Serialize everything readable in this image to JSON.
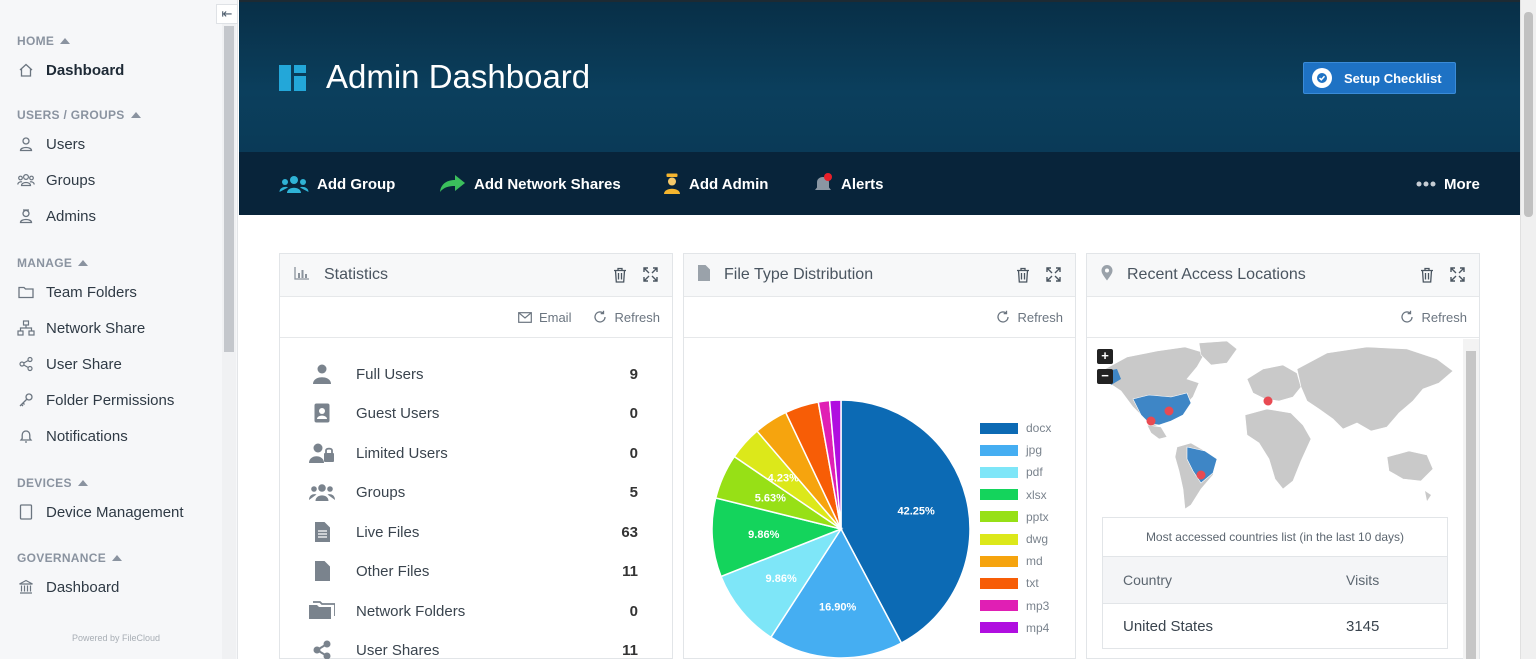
{
  "sidebar": {
    "sections": [
      {
        "title": "HOME",
        "items": [
          {
            "label": "Dashboard",
            "icon": "home-icon",
            "active": true
          }
        ]
      },
      {
        "title": "USERS / GROUPS",
        "items": [
          {
            "label": "Users",
            "icon": "user-icon"
          },
          {
            "label": "Groups",
            "icon": "group-icon"
          },
          {
            "label": "Admins",
            "icon": "admin-icon"
          }
        ]
      },
      {
        "title": "MANAGE",
        "items": [
          {
            "label": "Team Folders",
            "icon": "folder-icon"
          },
          {
            "label": "Network Share",
            "icon": "network-icon"
          },
          {
            "label": "User Share",
            "icon": "share-icon"
          },
          {
            "label": "Folder Permissions",
            "icon": "key-icon"
          },
          {
            "label": "Notifications",
            "icon": "bell-icon"
          }
        ]
      },
      {
        "title": "DEVICES",
        "items": [
          {
            "label": "Device Management",
            "icon": "device-icon"
          }
        ]
      },
      {
        "title": "GOVERNANCE",
        "items": [
          {
            "label": "Dashboard",
            "icon": "bank-icon"
          }
        ]
      }
    ],
    "powered_by": "Powered by FileCloud"
  },
  "header": {
    "title": "Admin Dashboard",
    "setup_button": "Setup Checklist"
  },
  "actions": {
    "add_group": "Add Group",
    "add_network_shares": "Add Network Shares",
    "add_admin": "Add Admin",
    "alerts": "Alerts",
    "more": "More"
  },
  "statistics": {
    "title": "Statistics",
    "email": "Email",
    "refresh": "Refresh",
    "rows": [
      {
        "label": "Full Users",
        "value": "9"
      },
      {
        "label": "Guest Users",
        "value": "0"
      },
      {
        "label": "Limited Users",
        "value": "0"
      },
      {
        "label": "Groups",
        "value": "5"
      },
      {
        "label": "Live Files",
        "value": "63"
      },
      {
        "label": "Other Files",
        "value": "11"
      },
      {
        "label": "Network Folders",
        "value": "0"
      },
      {
        "label": "User Shares",
        "value": "11"
      }
    ]
  },
  "file_types": {
    "title": "File Type Distribution",
    "refresh": "Refresh"
  },
  "chart_data": {
    "type": "pie",
    "categories": [
      "docx",
      "jpg",
      "pdf",
      "xlsx",
      "pptx",
      "dwg",
      "md",
      "txt",
      "mp3",
      "mp4"
    ],
    "values": [
      42.25,
      16.9,
      9.86,
      9.86,
      5.63,
      4.23,
      4.23,
      4.23,
      1.41,
      1.41
    ],
    "labels": [
      "42.25%",
      "16.90%",
      "9.86%",
      "9.86%",
      "5.63%",
      "4.23%",
      "",
      "",
      "",
      ""
    ],
    "colors": [
      "#0c6ab4",
      "#45aef2",
      "#7ee6f8",
      "#14d45c",
      "#97e016",
      "#dce81a",
      "#f6a40e",
      "#f75d06",
      "#e01fb4",
      "#b00ee0"
    ],
    "legend_position": "right"
  },
  "access": {
    "title": "Recent Access Locations",
    "refresh": "Refresh",
    "zoom_in": "+",
    "zoom_out": "−",
    "caption": "Most accessed countries list (in the last 10 days)",
    "col_country": "Country",
    "col_visits": "Visits",
    "rows": [
      {
        "country": "United States",
        "visits": "3145"
      }
    ]
  },
  "colors": {
    "accent": "#1e72c4",
    "header": "#0b3f5d",
    "actionbar": "#08243a"
  }
}
